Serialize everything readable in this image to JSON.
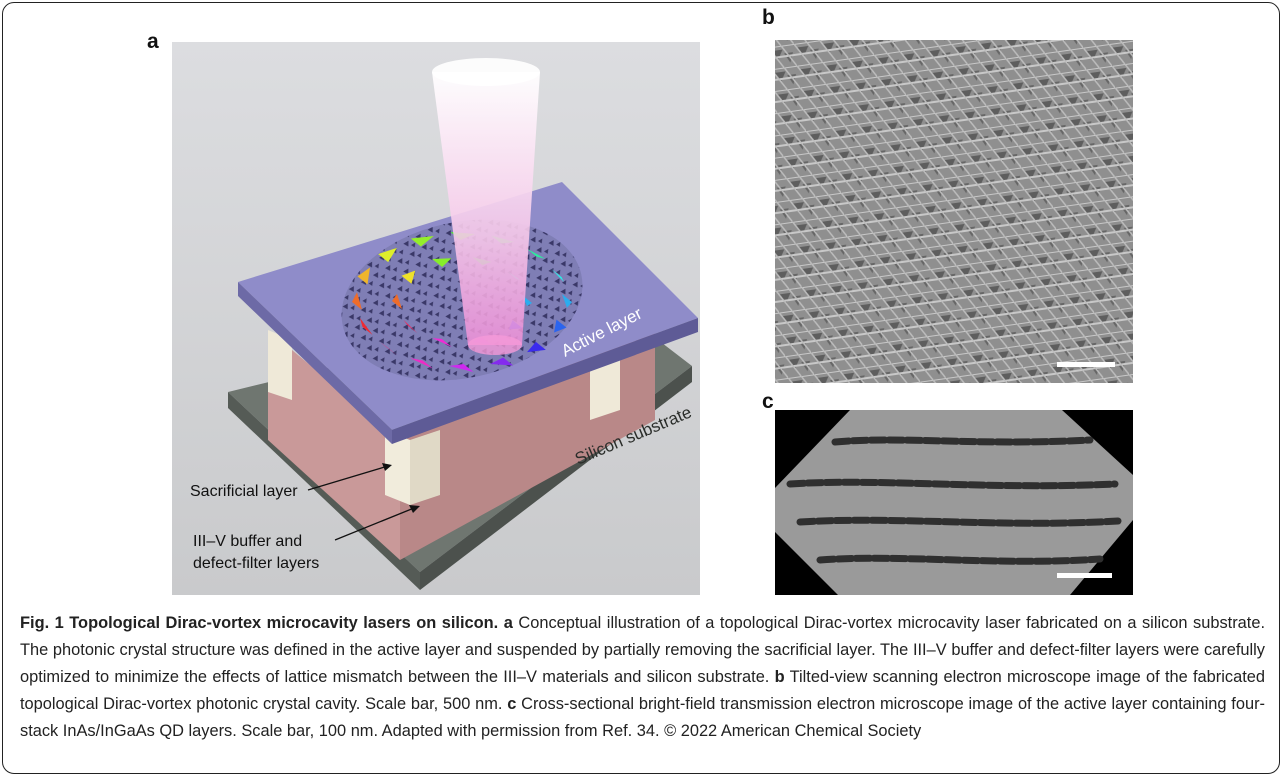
{
  "figure": {
    "panels": [
      {
        "label": "a",
        "annotations": [
          "Active layer",
          "Silicon substrate",
          "Sacrificial layer",
          "III–V buffer and",
          "defect-filter layers"
        ]
      },
      {
        "label": "b"
      },
      {
        "label": "c"
      }
    ],
    "caption": {
      "title": "Fig. 1 Topological Dirac-vortex microcavity lasers on silicon.",
      "parts": [
        {
          "label": "a",
          "text": "Conceptual illustration of a topological Dirac-vortex microcavity laser fabricated on a silicon substrate. The photonic crystal structure was defined in the active layer and suspended by partially removing the sacrificial layer. The III–V buffer and defect-filter layers were carefully optimized to minimize the effects of lattice mismatch between the III–V materials and silicon substrate."
        },
        {
          "label": "b",
          "text": "Tilted-view scanning electron microscope image of the fabricated topological Dirac-vortex photonic crystal cavity. Scale bar, 500 nm."
        },
        {
          "label": "c",
          "text": "Cross-sectional bright-field transmission electron microscope image of the active layer containing four-stack InAs/InGaAs QD layers. Scale bar, 100 nm. Adapted with permission from Ref. 34. © 2022 American Chemical Society"
        }
      ]
    }
  }
}
